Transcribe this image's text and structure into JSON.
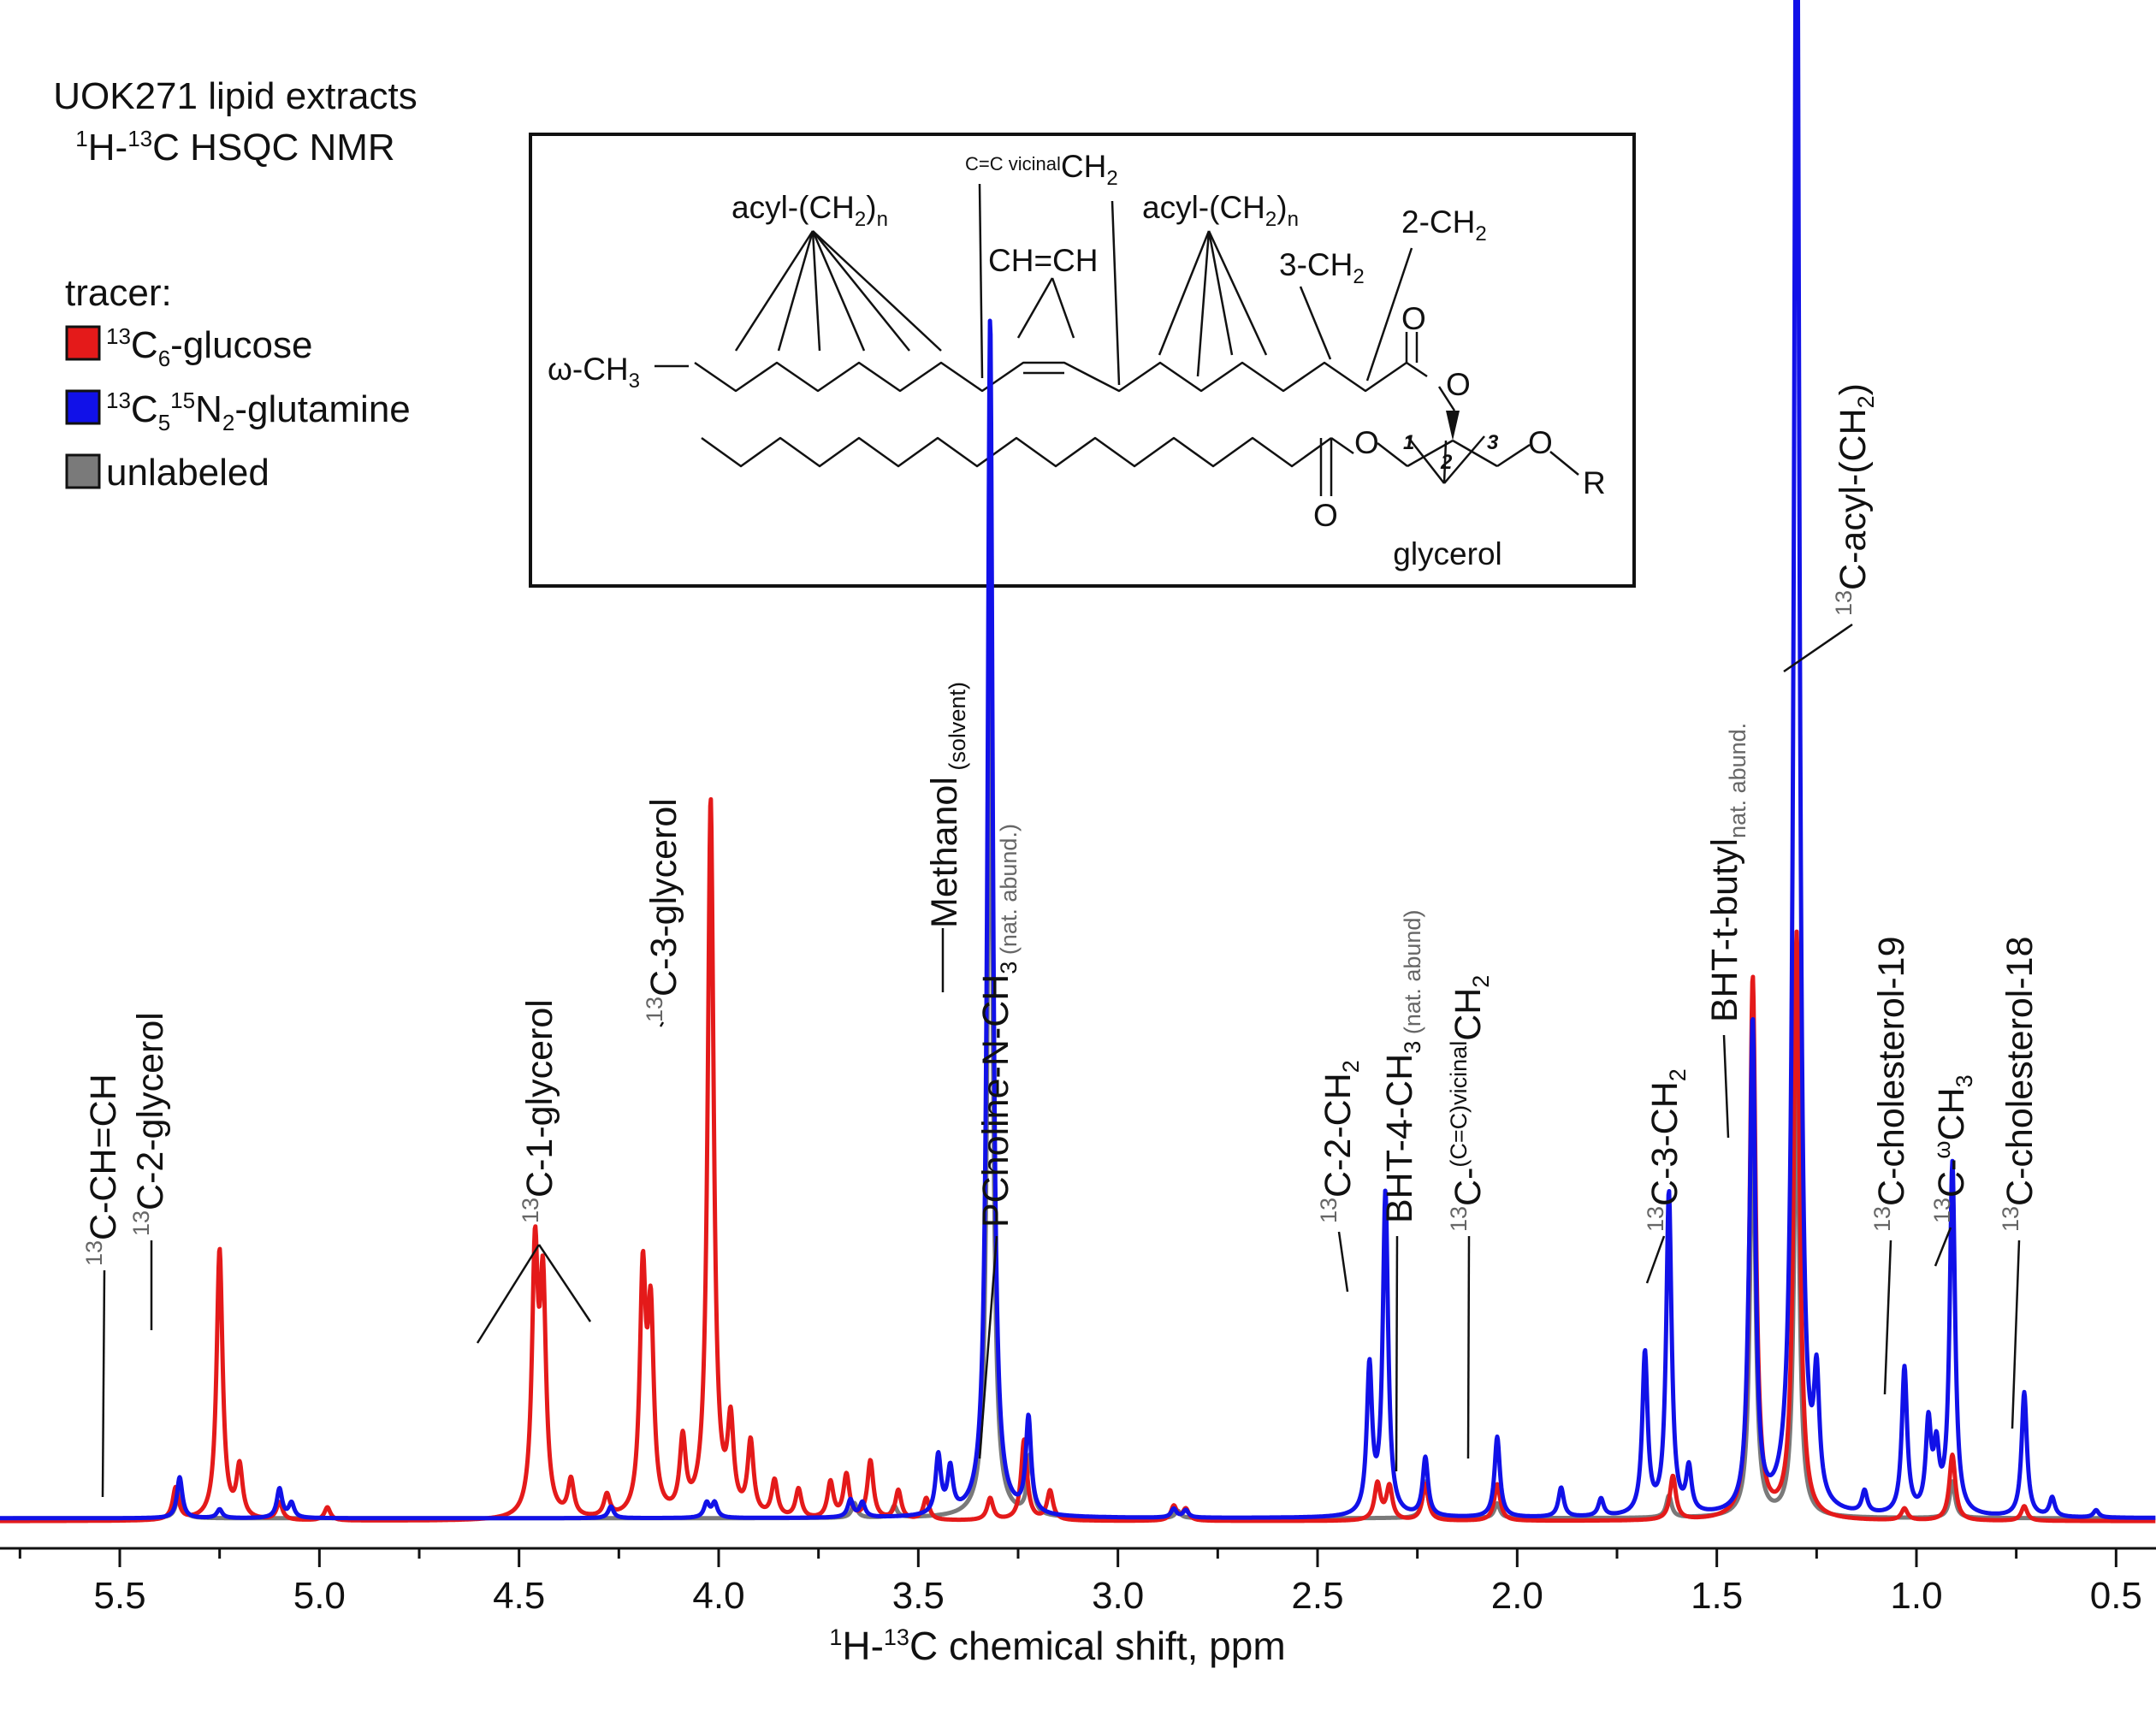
{
  "chart_data": {
    "type": "line",
    "title_line1": "UOK271 lipid extracts",
    "title_line2_parts": [
      "1",
      "H-",
      "13",
      "C HSQC NMR"
    ],
    "xlabel_parts": [
      "1",
      "H-",
      "13",
      "C chemical shift, ppm"
    ],
    "xlim": [
      5.8,
      0.4
    ],
    "x_reversed": true,
    "ylim": [
      0,
      100
    ],
    "xticks": [
      5.5,
      5.0,
      4.5,
      4.0,
      3.5,
      3.0,
      2.5,
      2.0,
      1.5,
      1.0,
      0.5
    ],
    "xtick_labels": [
      "5.5",
      "5.0",
      "4.5",
      "4.0",
      "3.5",
      "3.0",
      "2.5",
      "2.0",
      "1.5",
      "1.0",
      "0.5"
    ],
    "legend": {
      "title": "tracer:",
      "placement": "top-left",
      "entries": [
        {
          "label_parts": [
            "13",
            "C",
            "6",
            "-glucose"
          ],
          "color": "#e41a1a"
        },
        {
          "label_parts": [
            "13",
            "C",
            "5",
            "15",
            "N",
            "2",
            "-glutamine"
          ],
          "color": "#1111e8"
        },
        {
          "label_parts": [
            "unlabeled"
          ],
          "color": "#7a7a7a"
        }
      ]
    },
    "series": [
      {
        "id": "gray",
        "color": "#7a7a7a",
        "baseline": 1.0,
        "width": 0.008,
        "peaks": [
          [
            5.35,
            2.3
          ],
          [
            3.32,
            58
          ],
          [
            3.22,
            4
          ],
          [
            2.23,
            2.5
          ],
          [
            2.05,
            1.0
          ],
          [
            1.62,
            1.5
          ],
          [
            1.41,
            28
          ],
          [
            1.3,
            30
          ],
          [
            0.91,
            2.5
          ],
          [
            3.66,
            1.0
          ],
          [
            3.56,
            0.8
          ],
          [
            2.85,
            0.5
          ]
        ]
      },
      {
        "id": "red",
        "color": "#e41a1a",
        "baseline": 0.8,
        "width": 0.009,
        "peaks": [
          [
            5.36,
            2.2
          ],
          [
            5.25,
            18.5
          ],
          [
            5.2,
            3.5
          ],
          [
            5.1,
            1.2
          ],
          [
            4.98,
            0.9
          ],
          [
            4.46,
            17.5
          ],
          [
            4.44,
            15
          ],
          [
            4.37,
            2.5
          ],
          [
            4.28,
            1.5
          ],
          [
            4.19,
            16
          ],
          [
            4.17,
            13
          ],
          [
            4.09,
            5
          ],
          [
            4.02,
            49
          ],
          [
            3.97,
            6
          ],
          [
            3.92,
            5
          ],
          [
            3.86,
            2.5
          ],
          [
            3.8,
            2
          ],
          [
            3.72,
            2.5
          ],
          [
            3.68,
            3
          ],
          [
            3.62,
            4
          ],
          [
            3.55,
            2
          ],
          [
            3.48,
            1.5
          ],
          [
            3.32,
            1.5
          ],
          [
            3.235,
            5.5
          ],
          [
            3.17,
            2
          ],
          [
            2.86,
            1.0
          ],
          [
            2.83,
            0.8
          ],
          [
            2.35,
            2.5
          ],
          [
            2.32,
            2.3
          ],
          [
            2.23,
            2.5
          ],
          [
            2.05,
            2.5
          ],
          [
            1.61,
            3.0
          ],
          [
            1.41,
            37
          ],
          [
            1.3,
            40
          ],
          [
            1.03,
            0.8
          ],
          [
            0.91,
            4.5
          ],
          [
            0.73,
            1.0
          ]
        ]
      },
      {
        "id": "blue",
        "color": "#1111e8",
        "baseline": 1.0,
        "width": 0.008,
        "peaks": [
          [
            5.35,
            2.8
          ],
          [
            5.25,
            0.6
          ],
          [
            5.1,
            2.0
          ],
          [
            5.07,
            1.0
          ],
          [
            4.27,
            0.8
          ],
          [
            4.03,
            1.0
          ],
          [
            4.01,
            1.0
          ],
          [
            3.67,
            1.2
          ],
          [
            3.64,
            1.0
          ],
          [
            3.45,
            4
          ],
          [
            3.42,
            3
          ],
          [
            3.32,
            82
          ],
          [
            3.224,
            6.5
          ],
          [
            2.86,
            0.6
          ],
          [
            2.83,
            0.5
          ],
          [
            2.37,
            10
          ],
          [
            2.33,
            22
          ],
          [
            2.23,
            4
          ],
          [
            2.05,
            5.5
          ],
          [
            1.89,
            2.0
          ],
          [
            1.79,
            1.2
          ],
          [
            1.68,
            11
          ],
          [
            1.62,
            22
          ],
          [
            1.57,
            3
          ],
          [
            1.42,
            4
          ],
          [
            1.41,
            32
          ],
          [
            1.3,
            120
          ],
          [
            1.25,
            8
          ],
          [
            1.13,
            1.5
          ],
          [
            1.03,
            10
          ],
          [
            0.97,
            6
          ],
          [
            0.95,
            4
          ],
          [
            0.91,
            24
          ],
          [
            0.73,
            8.5
          ],
          [
            0.66,
            1.3
          ],
          [
            0.55,
            0.5
          ]
        ]
      }
    ],
    "annotations": [
      {
        "id": "chch",
        "parts": [
          [
            "13",
            "sup",
            "g"
          ],
          [
            "C-CH=CH",
            "",
            "k"
          ]
        ]
      },
      {
        "id": "gly2",
        "parts": [
          [
            "13",
            "sup",
            "g"
          ],
          [
            "C-2-glycerol",
            "",
            "k"
          ]
        ]
      },
      {
        "id": "gly1",
        "parts": [
          [
            "13",
            "sup",
            "g"
          ],
          [
            "C-1-glycerol",
            "",
            "k"
          ]
        ]
      },
      {
        "id": "gly3",
        "parts": [
          [
            "13",
            "sup",
            "g"
          ],
          [
            "C-3-glycerol",
            "",
            "k"
          ]
        ]
      },
      {
        "id": "meoh",
        "parts": [
          [
            "Methanol",
            "",
            "k"
          ],
          [
            " (solvent)",
            "sub",
            "k"
          ]
        ]
      },
      {
        "id": "pchol",
        "parts": [
          [
            "PCholine-N-CH",
            "",
            "k"
          ],
          [
            "3",
            "sub",
            "k"
          ],
          [
            " (nat. abund.)",
            "sub",
            "g"
          ]
        ]
      },
      {
        "id": "ch2_2",
        "parts": [
          [
            "13",
            "sup",
            "g"
          ],
          [
            "C-2-CH",
            "",
            "k"
          ],
          [
            "2",
            "sub",
            "k"
          ]
        ]
      },
      {
        "id": "bht4",
        "parts": [
          [
            "BHT-4-CH",
            "",
            "k"
          ],
          [
            "3",
            "sub",
            "k"
          ],
          [
            " (nat. abund)",
            "sub",
            "g"
          ]
        ]
      },
      {
        "id": "vic",
        "parts": [
          [
            "13",
            "sup",
            "g"
          ],
          [
            "C-",
            "",
            "k"
          ],
          [
            "(C=C)vicinal",
            "sup",
            "k"
          ],
          [
            "CH",
            "",
            "k"
          ],
          [
            "2",
            "sub",
            "k"
          ]
        ]
      },
      {
        "id": "ch2_3",
        "parts": [
          [
            "13",
            "sup",
            "g"
          ],
          [
            "C-3-CH",
            "",
            "k"
          ],
          [
            "2",
            "sub",
            "k"
          ]
        ]
      },
      {
        "id": "bhtt",
        "parts": [
          [
            "BHT-t-butyl",
            "",
            "k"
          ],
          [
            "nat. abund.",
            "sub",
            "g"
          ]
        ]
      },
      {
        "id": "acyl",
        "parts": [
          [
            "13",
            "sup",
            "g"
          ],
          [
            "C-acyl-(CH",
            "",
            "k"
          ],
          [
            "2",
            "sub",
            "k"
          ],
          [
            ")",
            "",
            "k"
          ]
        ]
      },
      {
        "id": "chol19",
        "parts": [
          [
            "13",
            "sup",
            "g"
          ],
          [
            "C-cholesterol-19",
            "",
            "k"
          ]
        ]
      },
      {
        "id": "omega",
        "parts": [
          [
            "13",
            "sup",
            "g"
          ],
          [
            "C-",
            "",
            "k"
          ],
          [
            "ω",
            "sup",
            "k"
          ],
          [
            "CH",
            "",
            "k"
          ],
          [
            "3",
            "sub",
            "k"
          ]
        ]
      },
      {
        "id": "chol18",
        "parts": [
          [
            "13",
            "sup",
            "g"
          ],
          [
            "C-cholesterol-18",
            "",
            "k"
          ]
        ]
      }
    ]
  },
  "structure": {
    "acyl_left": [
      "acyl-(CH",
      "2",
      ")",
      "n"
    ],
    "vicinal": [
      "C=C vicinal",
      "CH",
      "2"
    ],
    "acyl_right": [
      "acyl-(CH",
      "2",
      ")",
      "n"
    ],
    "chch": "CH=CH",
    "ch2_3": [
      "3-CH",
      "2"
    ],
    "ch2_2": [
      "2-CH",
      "2"
    ],
    "omega": [
      "ω-CH",
      "3"
    ],
    "o_letter": "O",
    "r_letter": "R",
    "pos1": "1",
    "pos2": "2",
    "pos3": "3",
    "glycerol": "glycerol"
  }
}
